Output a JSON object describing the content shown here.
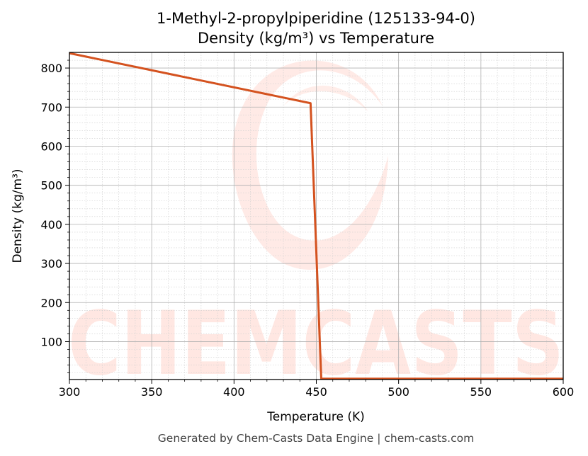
{
  "chart_data": {
    "type": "line",
    "title": "1-Methyl-2-propylpiperidine (125133-94-0)",
    "subtitle": "Density (kg/m³) vs Temperature",
    "xlabel": "Temperature (K)",
    "ylabel": "Density (kg/m³)",
    "xlim": [
      300,
      600
    ],
    "ylim": [
      3,
      840
    ],
    "x_ticks": [
      300,
      350,
      400,
      450,
      500,
      550,
      600
    ],
    "y_ticks": [
      100,
      200,
      300,
      400,
      500,
      600,
      700,
      800
    ],
    "grid": true,
    "legend": "none",
    "series": [
      {
        "color": "#d4521f",
        "x": [
          300,
          446.5,
          453,
          600
        ],
        "y": [
          838,
          710,
          5,
          5
        ]
      }
    ]
  },
  "watermark": {
    "text": "CHEMCASTS",
    "color": "#ff6a4d"
  },
  "footer": "Generated by Chem-Casts Data Engine | chem-casts.com"
}
